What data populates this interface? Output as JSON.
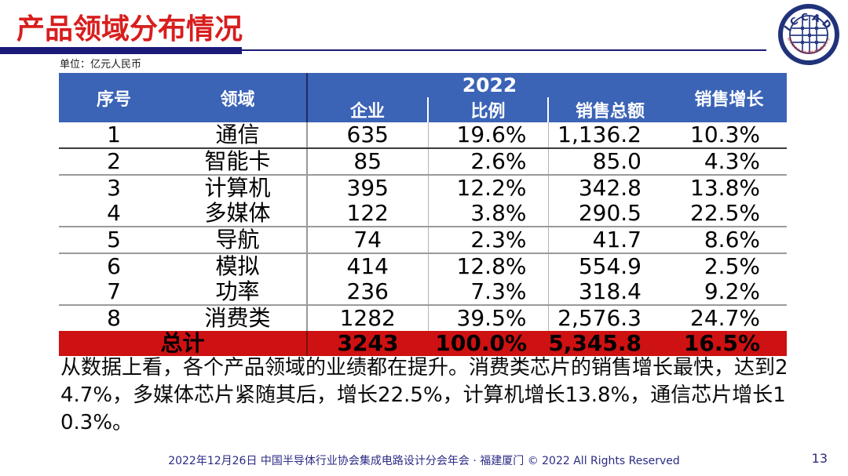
{
  "page": {
    "title": "产品领域分布情况",
    "unit_label": "单位：亿元人民币",
    "page_number": "13"
  },
  "logo": {
    "text": "ICCAD",
    "ring_text": "中国半导体行业协会集成电路设计分会"
  },
  "table": {
    "headers": {
      "no": "序号",
      "field": "领域",
      "year": "2022",
      "companies": "企业",
      "ratio": "比例",
      "sales_total": "销售总额",
      "sales_growth": "销售增长"
    },
    "rows": [
      {
        "no": "1",
        "field": "通信",
        "companies": "635",
        "ratio": "19.6%",
        "sales": "1,136.2",
        "growth": "10.3%"
      },
      {
        "no": "2",
        "field": "智能卡",
        "companies": "85",
        "ratio": "2.6%",
        "sales": "85.0",
        "growth": "4.3%"
      },
      {
        "no": "3",
        "field": "计算机",
        "companies": "395",
        "ratio": "12.2%",
        "sales": "342.8",
        "growth": "13.8%"
      },
      {
        "no": "4",
        "field": "多媒体",
        "companies": "122",
        "ratio": "3.8%",
        "sales": "290.5",
        "growth": "22.5%"
      },
      {
        "no": "5",
        "field": "导航",
        "companies": "74",
        "ratio": "2.3%",
        "sales": "41.7",
        "growth": "8.6%"
      },
      {
        "no": "6",
        "field": "模拟",
        "companies": "414",
        "ratio": "12.8%",
        "sales": "554.9",
        "growth": "2.5%"
      },
      {
        "no": "7",
        "field": "功率",
        "companies": "236",
        "ratio": "7.3%",
        "sales": "318.4",
        "growth": "9.2%"
      },
      {
        "no": "8",
        "field": "消费类",
        "companies": "1282",
        "ratio": "39.5%",
        "sales": "2,576.3",
        "growth": "24.7%"
      }
    ],
    "total": {
      "label": "总计",
      "companies": "3243",
      "ratio": "100.0%",
      "sales": "5,345.8",
      "growth": "16.5%"
    }
  },
  "analysis": {
    "text": "从数据上看，各个产品领域的业绩都在提升。消费类芯片的销售增长最快，达到24.7%，多媒体芯片紧随其后，增长22.5%，计算机增长13.8%，通信芯片增长10.3%。"
  },
  "footer": {
    "text": "2022年12月26日 中国半导体行业协会集成电路设计分会年会 · 福建厦门 © 2022 All Rights Reserved"
  },
  "colors": {
    "title_red": "#d81e1e",
    "header_blue": "#3b63b6",
    "total_row_red": "#ce1112",
    "rule_navy": "#1a1a78",
    "footer_navy": "#2b2b85"
  },
  "chart_data": {
    "type": "table",
    "title": "产品领域分布情况",
    "unit": "亿元人民币",
    "year_group": "2022",
    "columns": [
      "序号",
      "领域",
      "企业",
      "比例",
      "销售总额",
      "销售增长"
    ],
    "rows": [
      [
        1,
        "通信",
        635,
        "19.6%",
        1136.2,
        "10.3%"
      ],
      [
        2,
        "智能卡",
        85,
        "2.6%",
        85.0,
        "4.3%"
      ],
      [
        3,
        "计算机",
        395,
        "12.2%",
        342.8,
        "13.8%"
      ],
      [
        4,
        "多媒体",
        122,
        "3.8%",
        290.5,
        "22.5%"
      ],
      [
        5,
        "导航",
        74,
        "2.3%",
        41.7,
        "8.6%"
      ],
      [
        6,
        "模拟",
        414,
        "12.8%",
        554.9,
        "2.5%"
      ],
      [
        7,
        "功率",
        236,
        "7.3%",
        318.4,
        "9.2%"
      ],
      [
        8,
        "消费类",
        1282,
        "39.5%",
        2576.3,
        "24.7%"
      ]
    ],
    "totals": [
      "总计",
      "",
      3243,
      "100.0%",
      5345.8,
      "16.5%"
    ]
  }
}
